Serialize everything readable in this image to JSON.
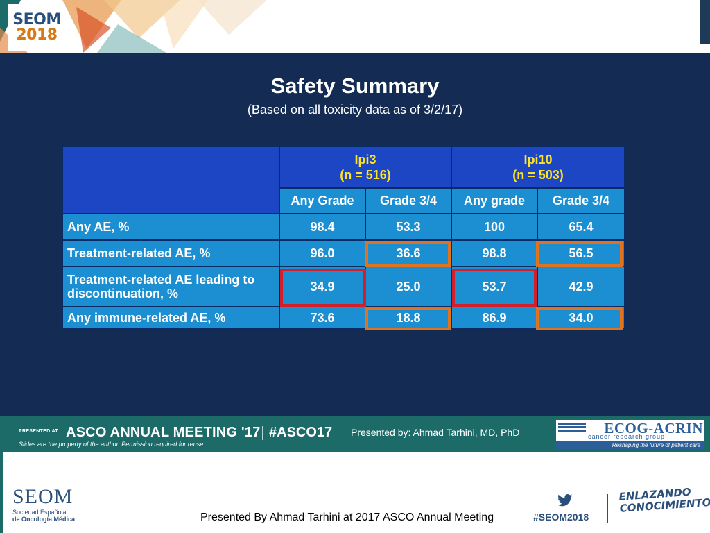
{
  "header": {
    "badge": {
      "line1": "SEOM",
      "line2": "2018"
    }
  },
  "slide": {
    "title": "Safety Summary",
    "subtitle": "(Based on all toxicity data as of 3/2/17)",
    "table": {
      "groups": [
        {
          "name": "Ipi3",
          "n": "(n = 516)"
        },
        {
          "name": "Ipi10",
          "n": "(n = 503)"
        }
      ],
      "subheaders": [
        "Any Grade",
        "Grade 3/4",
        "Any grade",
        "Grade 3/4"
      ],
      "rows": [
        {
          "label": "Any AE, %",
          "values": [
            "98.4",
            "53.3",
            "100",
            "65.4"
          ]
        },
        {
          "label": "Treatment-related AE, %",
          "values": [
            "96.0",
            "36.6",
            "98.8",
            "56.5"
          ]
        },
        {
          "label": "Treatment-related AE leading to discontinuation, %",
          "values": [
            "34.9",
            "25.0",
            "53.7",
            "42.9"
          ]
        },
        {
          "label": "Any immune-related AE, %",
          "values": [
            "73.6",
            "18.8",
            "86.9",
            "34.0"
          ]
        }
      ]
    },
    "colors": {
      "background": "#142c54",
      "header": "#1c46c3",
      "cell": "#1c8fd3",
      "group_text": "#ffe326",
      "highlight_orange": "#e0731f",
      "highlight_red": "#d21f2a"
    }
  },
  "banner": {
    "presented_at": "PRESENTED AT:",
    "meeting": "ASCO ANNUAL MEETING '17",
    "hashtag": "#ASCO17",
    "presenter": "Presented by: Ahmad Tarhini, MD, PhD",
    "disclaimer": "Slides are the property of the author. Permission required for reuse."
  },
  "ecog": {
    "name": "ECOG-ACRIN",
    "tagline": "cancer research group",
    "slogan": "Reshaping the future of patient care"
  },
  "footer": {
    "logo_name": "SEOM",
    "logo_line1": "Sociedad Española",
    "logo_line2": "de Oncología Médica",
    "presented_by": "Presented By Ahmad Tarhini at 2017 ASCO Annual Meeting",
    "twitter_icon": "twitter-bird-icon",
    "hashtag": "#SEOM2018",
    "slogan_line1": "ENLAZANDO",
    "slogan_line2": "CONOCIMIENTO"
  }
}
